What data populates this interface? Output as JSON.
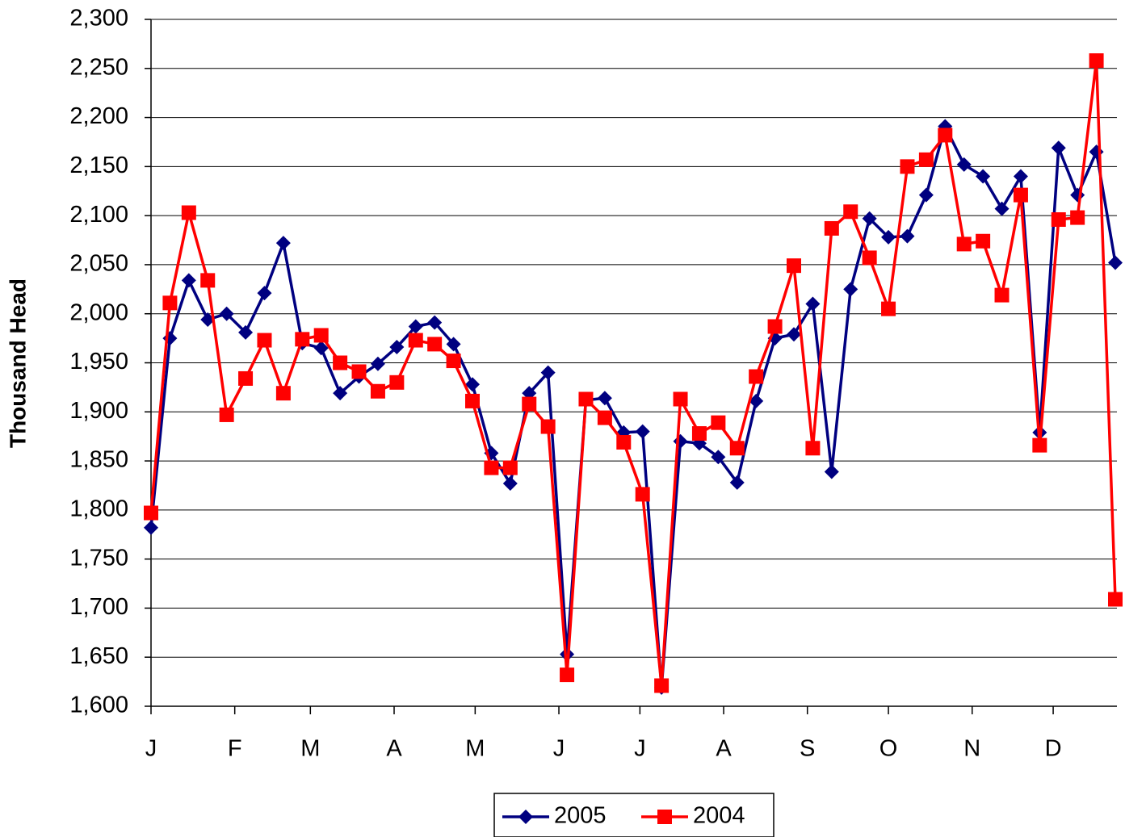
{
  "chart_data": {
    "type": "line",
    "y_label": "Thousand Head",
    "x": [
      1,
      8,
      15,
      22,
      29,
      36,
      43,
      50,
      57,
      64,
      71,
      78,
      85,
      92,
      99,
      106,
      113,
      120,
      127,
      134,
      141,
      148,
      155,
      162,
      169,
      176,
      183,
      190,
      197,
      204,
      211,
      218,
      225,
      232,
      239,
      246,
      253,
      260,
      267,
      274,
      281,
      288,
      295,
      302,
      309,
      316,
      323,
      330,
      337,
      344,
      351,
      358
    ],
    "xlim": [
      1,
      358
    ],
    "xticks": [
      {
        "value": 1,
        "label": "J"
      },
      {
        "value": 32,
        "label": "F"
      },
      {
        "value": 60,
        "label": "M"
      },
      {
        "value": 91,
        "label": "A"
      },
      {
        "value": 121,
        "label": "M"
      },
      {
        "value": 152,
        "label": "J"
      },
      {
        "value": 182,
        "label": "J"
      },
      {
        "value": 213,
        "label": "A"
      },
      {
        "value": 244,
        "label": "S"
      },
      {
        "value": 274,
        "label": "O"
      },
      {
        "value": 305,
        "label": "N"
      },
      {
        "value": 335,
        "label": "D"
      }
    ],
    "ylim": [
      1600,
      2300
    ],
    "yticks": [
      {
        "value": 1600,
        "label": "1,600"
      },
      {
        "value": 1650,
        "label": "1,650"
      },
      {
        "value": 1700,
        "label": "1,700"
      },
      {
        "value": 1750,
        "label": "1,750"
      },
      {
        "value": 1800,
        "label": "1,800"
      },
      {
        "value": 1850,
        "label": "1,850"
      },
      {
        "value": 1900,
        "label": "1,900"
      },
      {
        "value": 1950,
        "label": "1,950"
      },
      {
        "value": 2000,
        "label": "2,000"
      },
      {
        "value": 2050,
        "label": "2,050"
      },
      {
        "value": 2100,
        "label": "2,100"
      },
      {
        "value": 2150,
        "label": "2,150"
      },
      {
        "value": 2200,
        "label": "2,200"
      },
      {
        "value": 2250,
        "label": "2,250"
      },
      {
        "value": 2300,
        "label": "2,300"
      }
    ],
    "grid": true,
    "legend": "bottom",
    "series": [
      {
        "name": "2005",
        "color": "#000080",
        "marker": "diamond",
        "values": [
          1782,
          1975,
          2034,
          1994,
          2000,
          1981,
          2021,
          2072,
          1970,
          1965,
          1919,
          1936,
          1949,
          1966,
          1987,
          1991,
          1969,
          1928,
          1858,
          1827,
          1919,
          1940,
          1653,
          1912,
          1914,
          1879,
          1880,
          1619,
          1870,
          1868,
          1854,
          1828,
          1911,
          1975,
          1979,
          2010,
          1839,
          2025,
          2097,
          2078,
          2079,
          2121,
          2191,
          2152,
          2140,
          2107,
          2140,
          1879,
          2169,
          2121,
          2165,
          2052
        ]
      },
      {
        "name": "2004",
        "color": "#ff0000",
        "marker": "square",
        "values": [
          1797,
          2011,
          2103,
          2034,
          1897,
          1934,
          1973,
          1919,
          1974,
          1978,
          1950,
          1941,
          1921,
          1930,
          1973,
          1969,
          1952,
          1911,
          1843,
          1843,
          1908,
          1885,
          1632,
          1913,
          1894,
          1869,
          1816,
          1621,
          1913,
          1878,
          1889,
          1863,
          1936,
          1987,
          2049,
          1863,
          2087,
          2104,
          2057,
          2005,
          2150,
          2157,
          2182,
          2071,
          2074,
          2019,
          2121,
          1866,
          2096,
          2098,
          2258,
          1709
        ]
      }
    ]
  }
}
